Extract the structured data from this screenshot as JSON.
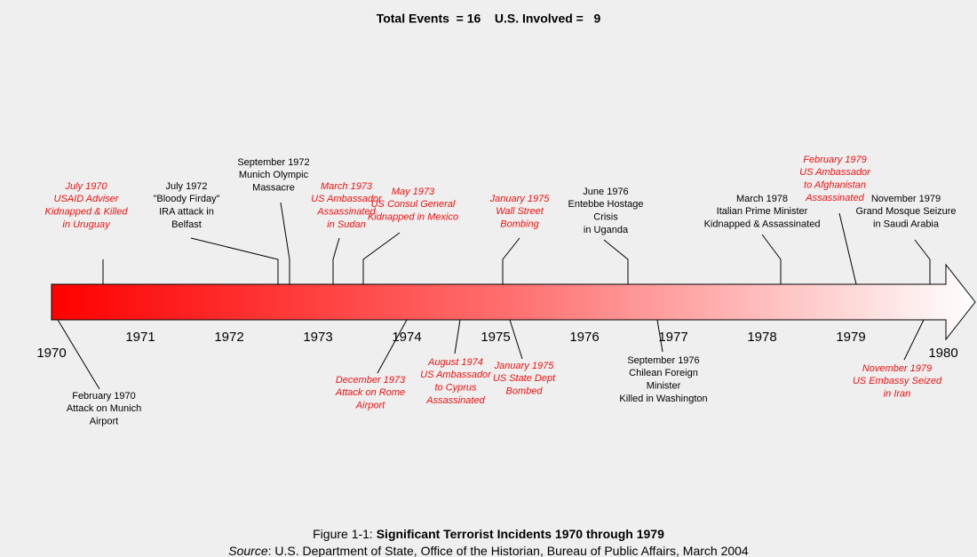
{
  "header": {
    "title": "Total Events  = 16    U.S. Involved =   9"
  },
  "timeline": {
    "years": [
      "1970",
      "1971",
      "1972",
      "1973",
      "1974",
      "1975",
      "1976",
      "1977",
      "1978",
      "1979",
      "1980"
    ]
  },
  "events": [
    {
      "lines": [
        "July 1970",
        "USAID Adviser",
        "Kidnapped & Killed",
        "in Uruguay"
      ],
      "color": "#ee1111"
    },
    {
      "lines": [
        "July 1972",
        "\"Bloody Firday\"",
        "IRA attack in",
        "Belfast"
      ],
      "color": "#000000"
    },
    {
      "lines": [
        "September 1972",
        "Munich Olympic",
        "Massacre"
      ],
      "color": "#000000"
    },
    {
      "lines": [
        "March 1973",
        "US Ambassador",
        "Assassinated",
        "in Sudan"
      ],
      "color": "#ee1111"
    },
    {
      "lines": [
        "May 1973",
        "US Consul General",
        "Kidnapped in Mexico"
      ],
      "color": "#ee1111"
    },
    {
      "lines": [
        "January 1975",
        "Wall Street",
        "Bombing"
      ],
      "color": "#ee1111"
    },
    {
      "lines": [
        "June 1976",
        "Entebbe Hostage",
        "Crisis",
        "in Uganda"
      ],
      "color": "#000000"
    },
    {
      "lines": [
        "March 1978",
        "Italian Prime Minister",
        "Kidnapped & Assassinated"
      ],
      "color": "#000000"
    },
    {
      "lines": [
        "February 1979",
        "US Ambassador",
        "to Afghanistan",
        "Assassinated"
      ],
      "color": "#ee1111"
    },
    {
      "lines": [
        "November 1979",
        "Grand Mosque Seizure",
        "in Saudi Arabia"
      ],
      "color": "#000000"
    },
    {
      "lines": [
        "February 1970",
        "Attack on Munich",
        "Airport"
      ],
      "color": "#000000"
    },
    {
      "lines": [
        "December 1973",
        "Attack on Rome",
        "Airport"
      ],
      "color": "#ee1111"
    },
    {
      "lines": [
        "August 1974",
        "US Ambassador",
        "to Cyprus",
        "Assassinated"
      ],
      "color": "#ee1111"
    },
    {
      "lines": [
        "January 1975",
        "US State Dept",
        "Bombed"
      ],
      "color": "#ee1111"
    },
    {
      "lines": [
        "September 1976",
        "Chilean Foreign",
        "Minister",
        "Killed in Washington"
      ],
      "color": "#000000"
    },
    {
      "lines": [
        "November 1979",
        "US Embassy Seized",
        "in Iran"
      ],
      "color": "#ee1111"
    }
  ],
  "caption": {
    "label": "Figure 1-1: ",
    "title": "Significant Terrorist Incidents 1970 through 1979"
  },
  "source": {
    "label": "Source",
    "text": ": U.S. Department of State, Office of the Historian, Bureau of Public Affairs, March 2004"
  }
}
